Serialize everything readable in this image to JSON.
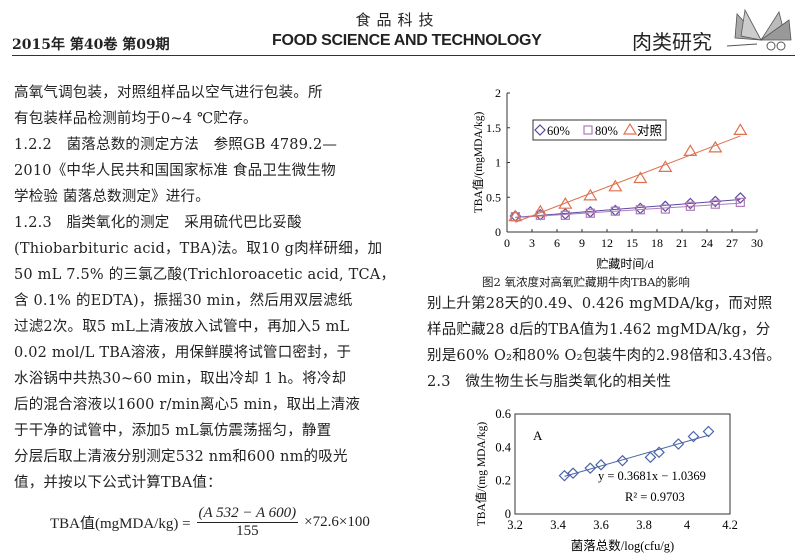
{
  "header": {
    "journal_cn": "食品科技",
    "issue": "2015年 第40卷 第09期",
    "journal_en": "FOOD SCIENCE AND TECHNOLOGY",
    "section": "肉类研究"
  },
  "left_column": {
    "lines": [
      "高氧气调包装，对照组样品以空气进行包装。所",
      "有包装样品检测前均于0~4 ℃贮存。",
      "1.2.2　菌落总数的测定方法　参照GB 4789.2—",
      "2010《中华人民共和国国家标准 食品卫生微生物",
      "学检验 菌落总数测定》进行。",
      "1.2.3　脂类氧化的测定　采用硫代巴比妥酸",
      "(Thiobarbituric acid，TBA)法。取10 g肉样研细，加",
      "50 mL 7.5% 的三氯乙酸(Trichloroacetic acid, TCA，",
      "含 0.1% 的EDTA)，振摇30 min，然后用双层滤纸",
      "过滤2次。取5 mL上清液放入试管中，再加入5 mL",
      "0.02 mol/L TBA溶液，用保鲜膜将试管口密封，于",
      "水浴锅中共热30~60 min，取出冷却 1 h。将冷却",
      "后的混合溶液以1600 r/min离心5 min，取出上清液",
      "于干净的试管中，添加5 mL氯仿震荡摇匀，静置",
      "分层后取上清液分别测定532 nm和600 nm的吸光",
      "值，并按以下公式计算TBA值："
    ],
    "formula": {
      "lhs": "TBA值(mgMDA/kg) =",
      "numerator": "(A 532 − A 600)",
      "denominator": "155",
      "rhs": "×72.6×100"
    }
  },
  "right_column": {
    "lines": [
      "别上升第28天的0.49、0.426 mgMDA/kg，而对照",
      "样品贮藏28 d后的TBA值为1.462 mgMDA/kg，分",
      "别是60% O₂和80% O₂包装牛肉的2.98倍和3.43倍。",
      "2.3　微生物生长与脂类氧化的相关性"
    ]
  },
  "chart_data": [
    {
      "type": "line",
      "title": "图2 氧浓度对高氧贮藏期牛肉TBA的影响",
      "xlabel": "贮藏时间/d",
      "ylabel": "TBA值/(mgMDA/kg)",
      "xlim": [
        0,
        30
      ],
      "ylim": [
        0,
        2
      ],
      "xticks": [
        "0",
        "3",
        "6",
        "9",
        "12",
        "15",
        "18",
        "21",
        "24",
        "27",
        "30"
      ],
      "yticks": [
        "0",
        "0.5",
        "1",
        "1.5",
        "2"
      ],
      "legend_position": "top-left",
      "x": [
        1,
        4,
        7,
        10,
        13,
        16,
        19,
        22,
        25,
        28
      ],
      "series": [
        {
          "name": "60%",
          "marker": "diamond",
          "color": "#5a4aa0",
          "values": [
            0.23,
            0.25,
            0.26,
            0.29,
            0.31,
            0.34,
            0.37,
            0.41,
            0.44,
            0.49
          ]
        },
        {
          "name": "80%",
          "marker": "square",
          "color": "#b07ab8",
          "values": [
            0.22,
            0.24,
            0.24,
            0.27,
            0.3,
            0.32,
            0.33,
            0.37,
            0.4,
            0.426
          ]
        },
        {
          "name": "对照",
          "marker": "triangle",
          "color": "#e07050",
          "values": [
            0.22,
            0.29,
            0.4,
            0.52,
            0.65,
            0.77,
            0.93,
            1.16,
            1.21,
            1.462
          ]
        }
      ]
    },
    {
      "type": "scatter",
      "panel_label": "A",
      "xlabel": "菌落总数/log(cfu/g)",
      "ylabel": "TBA值/(mg MDA/kg)",
      "xlim": [
        3.2,
        4.2
      ],
      "ylim": [
        0,
        0.6
      ],
      "xticks": [
        "3.2",
        "3.4",
        "3.6",
        "3.8",
        "4",
        "4.2"
      ],
      "yticks": [
        "0",
        "0.2",
        "0.4",
        "0.6"
      ],
      "color": "#4a64a8",
      "x": [
        3.43,
        3.47,
        3.55,
        3.6,
        3.7,
        3.83,
        3.87,
        3.96,
        4.03,
        4.1
      ],
      "y": [
        0.23,
        0.245,
        0.275,
        0.295,
        0.32,
        0.34,
        0.37,
        0.42,
        0.465,
        0.495
      ],
      "fit": {
        "slope": 0.3681,
        "intercept": -1.0369
      },
      "equation": "y = 0.3681x − 1.0369",
      "r2": "R² = 0.9703"
    }
  ]
}
